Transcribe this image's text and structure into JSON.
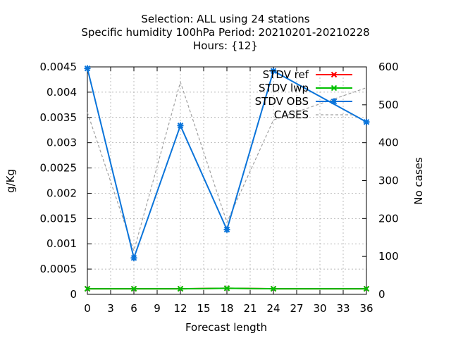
{
  "chart_data": {
    "type": "line",
    "title_lines": [
      "Selection: ALL using    24 stations",
      "Specific humidity 100hPa   Period: 20210201-20210228",
      "Hours: {12}"
    ],
    "xlabel": "Forecast length",
    "ylabel": "g/Kg",
    "y2label": "No cases",
    "x_ticks": [
      0,
      3,
      6,
      9,
      12,
      15,
      18,
      21,
      24,
      27,
      30,
      33,
      36
    ],
    "xlim": [
      0,
      36
    ],
    "y_ticks": [
      "0",
      "0.0005",
      "0.001",
      "0.0015",
      "0.002",
      "0.0025",
      "0.003",
      "0.0035",
      "0.004",
      "0.0045"
    ],
    "ylim": [
      0,
      0.0045
    ],
    "y2_ticks": [
      0,
      100,
      200,
      300,
      400,
      500,
      600
    ],
    "y2lim": [
      0,
      600
    ],
    "grid": true,
    "legend_position": "top-right",
    "series": [
      {
        "name": "STDV ref",
        "axis": "y",
        "color": "#ff0000",
        "marker": "x",
        "x": [
          0,
          6,
          12,
          18,
          24,
          36
        ],
        "y": [
          0.00011,
          0.00011,
          0.00011,
          0.00012,
          0.00011,
          0.00011
        ]
      },
      {
        "name": "STDV lwp",
        "axis": "y",
        "color": "#00c000",
        "marker": "x",
        "x": [
          0,
          6,
          12,
          18,
          24,
          36
        ],
        "y": [
          0.00011,
          0.00011,
          0.00011,
          0.00012,
          0.00011,
          0.00011
        ]
      },
      {
        "name": "STDV OBS",
        "axis": "y",
        "color": "#0a74da",
        "marker": "star",
        "x": [
          0,
          6,
          12,
          18,
          24,
          36
        ],
        "y": [
          0.00447,
          0.00072,
          0.00334,
          0.00128,
          0.00442,
          0.00341
        ]
      },
      {
        "name": "CASES",
        "axis": "y2",
        "color": "#a0a0a0",
        "dashed": true,
        "x": [
          0,
          6,
          12,
          18,
          24,
          36
        ],
        "y": [
          480,
          115,
          560,
          190,
          460,
          545
        ]
      }
    ]
  }
}
